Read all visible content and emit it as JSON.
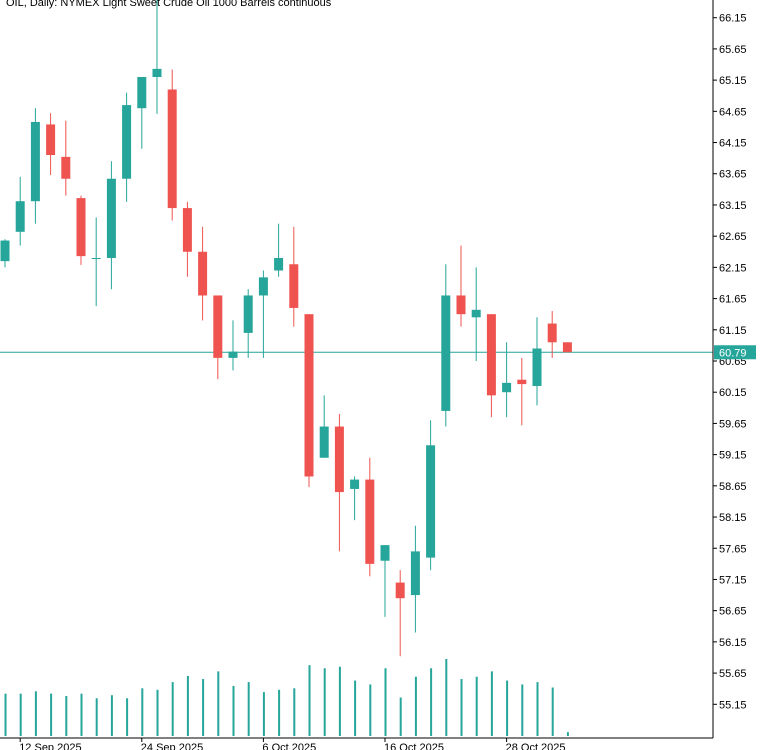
{
  "title": "OIL, Daily:  NYMEX Light Sweet Crude Oil 1000 Barrels continuous",
  "current_price": "60.79",
  "colors": {
    "bull": "#26a69a",
    "bear": "#ef5350",
    "axis": "#000000",
    "price_line": "#26a69a",
    "volume": "#26a69a",
    "background": "#ffffff"
  },
  "chart_data": {
    "type": "candlestick",
    "title": "OIL, Daily:  NYMEX Light Sweet Crude Oil 1000 Barrels continuous",
    "ylim": [
      54.9,
      66.4
    ],
    "y_ticks": [
      "66.15",
      "65.65",
      "65.15",
      "64.65",
      "64.15",
      "63.65",
      "63.15",
      "62.65",
      "62.15",
      "61.65",
      "61.15",
      "60.65",
      "60.15",
      "59.65",
      "59.15",
      "58.65",
      "58.15",
      "57.65",
      "57.15",
      "56.65",
      "56.15",
      "55.65",
      "55.15"
    ],
    "x_ticks": [
      {
        "label": "12 Sep 2025",
        "index": 1
      },
      {
        "label": "24 Sep 2025",
        "index": 9
      },
      {
        "label": "6 Oct 2025",
        "index": 17
      },
      {
        "label": "16 Oct 2025",
        "index": 25
      },
      {
        "label": "28 Oct 2025",
        "index": 33
      }
    ],
    "current_price": 60.79,
    "candles": [
      {
        "o": 62.25,
        "h": 62.6,
        "l": 62.15,
        "c": 62.58
      },
      {
        "o": 62.72,
        "h": 63.6,
        "l": 62.5,
        "c": 63.21
      },
      {
        "o": 63.21,
        "h": 64.7,
        "l": 62.85,
        "c": 64.48
      },
      {
        "o": 64.44,
        "h": 64.62,
        "l": 63.63,
        "c": 63.95
      },
      {
        "o": 63.92,
        "h": 64.5,
        "l": 63.3,
        "c": 63.57
      },
      {
        "o": 63.26,
        "h": 63.3,
        "l": 62.19,
        "c": 62.33
      },
      {
        "o": 62.3,
        "h": 62.95,
        "l": 61.53,
        "c": 62.3
      },
      {
        "o": 62.3,
        "h": 63.85,
        "l": 61.8,
        "c": 63.57
      },
      {
        "o": 63.57,
        "h": 64.95,
        "l": 63.2,
        "c": 64.75
      },
      {
        "o": 64.7,
        "h": 65.2,
        "l": 64.05,
        "c": 65.2
      },
      {
        "o": 65.2,
        "h": 66.7,
        "l": 64.61,
        "c": 65.33
      },
      {
        "o": 65.0,
        "h": 65.32,
        "l": 62.9,
        "c": 63.1
      },
      {
        "o": 63.1,
        "h": 63.2,
        "l": 62.0,
        "c": 62.4
      },
      {
        "o": 62.4,
        "h": 62.8,
        "l": 61.3,
        "c": 61.7
      },
      {
        "o": 61.7,
        "h": 61.7,
        "l": 60.36,
        "c": 60.7
      },
      {
        "o": 60.7,
        "h": 61.3,
        "l": 60.5,
        "c": 60.8
      },
      {
        "o": 61.1,
        "h": 61.8,
        "l": 60.7,
        "c": 61.7
      },
      {
        "o": 61.7,
        "h": 62.1,
        "l": 60.7,
        "c": 61.99
      },
      {
        "o": 62.1,
        "h": 62.85,
        "l": 62.0,
        "c": 62.3
      },
      {
        "o": 62.2,
        "h": 62.8,
        "l": 61.2,
        "c": 61.5
      },
      {
        "o": 61.4,
        "h": 61.4,
        "l": 58.63,
        "c": 58.8
      },
      {
        "o": 59.1,
        "h": 60.1,
        "l": 59.1,
        "c": 59.6
      },
      {
        "o": 59.6,
        "h": 59.8,
        "l": 57.6,
        "c": 58.55
      },
      {
        "o": 58.6,
        "h": 58.8,
        "l": 58.1,
        "c": 58.75
      },
      {
        "o": 58.75,
        "h": 59.1,
        "l": 57.2,
        "c": 57.4
      },
      {
        "o": 57.45,
        "h": 57.7,
        "l": 56.55,
        "c": 57.7
      },
      {
        "o": 57.1,
        "h": 57.3,
        "l": 55.92,
        "c": 56.85
      },
      {
        "o": 56.9,
        "h": 58.01,
        "l": 56.3,
        "c": 57.6
      },
      {
        "o": 57.5,
        "h": 59.7,
        "l": 57.3,
        "c": 59.3
      },
      {
        "o": 59.85,
        "h": 62.2,
        "l": 59.6,
        "c": 61.7
      },
      {
        "o": 61.7,
        "h": 62.5,
        "l": 61.2,
        "c": 61.4
      },
      {
        "o": 61.35,
        "h": 62.15,
        "l": 60.65,
        "c": 61.47
      },
      {
        "o": 61.4,
        "h": 61.4,
        "l": 59.75,
        "c": 60.1
      },
      {
        "o": 60.15,
        "h": 60.95,
        "l": 59.75,
        "c": 60.3
      },
      {
        "o": 60.35,
        "h": 60.7,
        "l": 59.62,
        "c": 60.28
      },
      {
        "o": 60.25,
        "h": 61.35,
        "l": 59.94,
        "c": 60.85
      },
      {
        "o": 61.25,
        "h": 61.45,
        "l": 60.7,
        "c": 60.95
      },
      {
        "o": 60.95,
        "h": 60.95,
        "l": 60.8,
        "c": 60.79
      }
    ],
    "volumes": [
      0.55,
      0.55,
      0.58,
      0.55,
      0.52,
      0.55,
      0.49,
      0.53,
      0.49,
      0.62,
      0.6,
      0.7,
      0.78,
      0.74,
      0.84,
      0.65,
      0.7,
      0.57,
      0.6,
      0.62,
      0.92,
      0.88,
      0.9,
      0.72,
      0.67,
      0.88,
      0.5,
      0.77,
      0.88,
      1.0,
      0.74,
      0.77,
      0.84,
      0.72,
      0.67,
      0.7,
      0.63,
      0.05
    ]
  }
}
